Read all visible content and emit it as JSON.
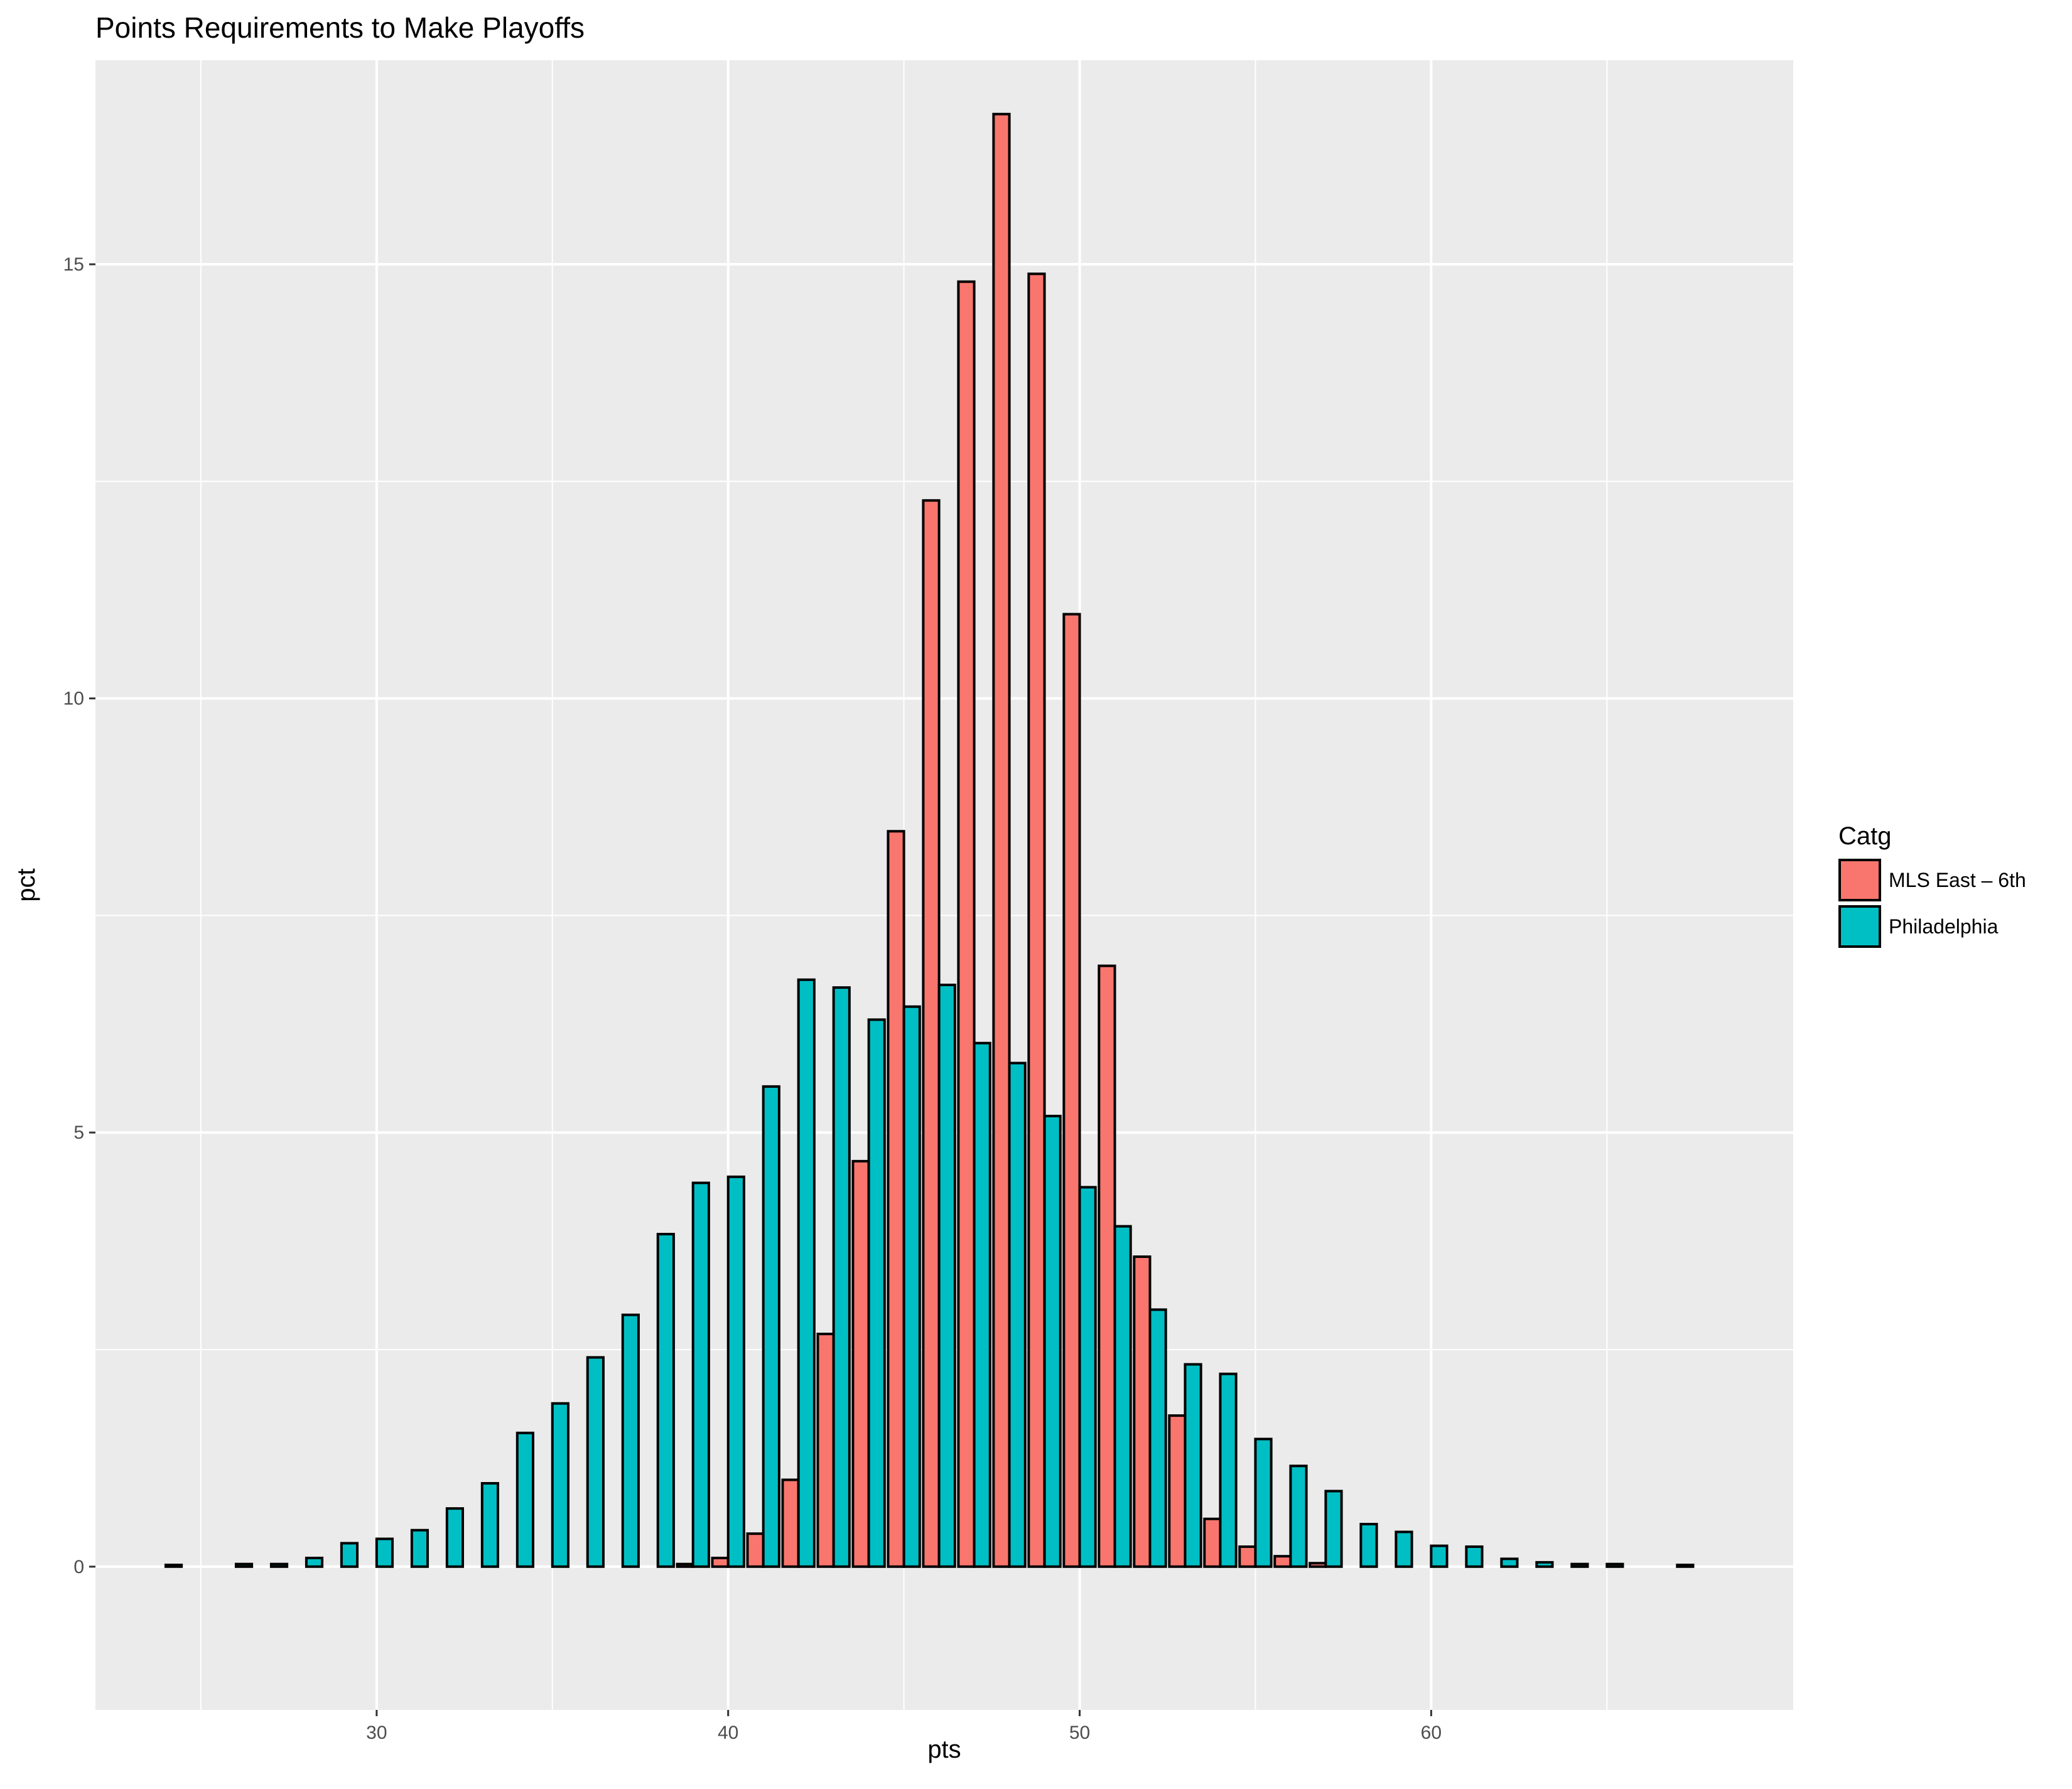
{
  "chart_data": {
    "type": "bar",
    "title": "Points Requirements to Make Playoffs",
    "xlabel": "pts",
    "ylabel": "pct",
    "xlim": [
      22,
      70.3
    ],
    "ylim": [
      -1.65,
      17.35
    ],
    "x_ticks": [
      30,
      40,
      50,
      60
    ],
    "y_ticks": [
      0,
      5,
      10,
      15
    ],
    "grid": true,
    "legend": {
      "title": "Catg",
      "position": "right",
      "entries": [
        "MLS East – 6th",
        "Philadelphia"
      ]
    },
    "colors": {
      "MLS East – 6th": "#F8766D",
      "Philadelphia": "#00BFC4",
      "panel": "#EBEBEB",
      "grid": "#FFFFFF",
      "outline": "#000000"
    },
    "x": [
      24,
      25,
      26,
      27,
      28,
      29,
      30,
      31,
      32,
      33,
      34,
      35,
      36,
      37,
      38,
      39,
      40,
      41,
      42,
      43,
      44,
      45,
      46,
      47,
      48,
      49,
      50,
      51,
      52,
      53,
      54,
      55,
      56,
      57,
      58,
      59,
      60,
      61,
      62,
      63,
      64,
      65,
      66,
      67
    ],
    "series": [
      {
        "name": "MLS East – 6th",
        "values": [
          0,
          0,
          0,
          0,
          0,
          0,
          0,
          0,
          0,
          0,
          0,
          0,
          0,
          0,
          0,
          0.03,
          0.1,
          0.38,
          1.0,
          2.68,
          4.67,
          8.47,
          12.28,
          14.8,
          16.73,
          14.89,
          10.97,
          6.92,
          3.57,
          1.74,
          0.55,
          0.23,
          0.12,
          0.04,
          0,
          0,
          0,
          0,
          0,
          0,
          0,
          0,
          0,
          0
        ]
      },
      {
        "name": "Philadelphia",
        "values": [
          0.02,
          0,
          0.03,
          0.03,
          0.1,
          0.27,
          0.32,
          0.42,
          0.67,
          0.96,
          1.54,
          1.88,
          2.41,
          2.9,
          3.83,
          4.42,
          4.49,
          5.53,
          6.76,
          6.67,
          6.3,
          6.45,
          6.7,
          6.03,
          5.8,
          5.19,
          4.37,
          3.92,
          2.96,
          2.33,
          2.22,
          1.47,
          1.16,
          0.87,
          0.49,
          0.4,
          0.24,
          0.23,
          0.09,
          0.05,
          0.03,
          0.03,
          0,
          0.02
        ]
      }
    ]
  }
}
